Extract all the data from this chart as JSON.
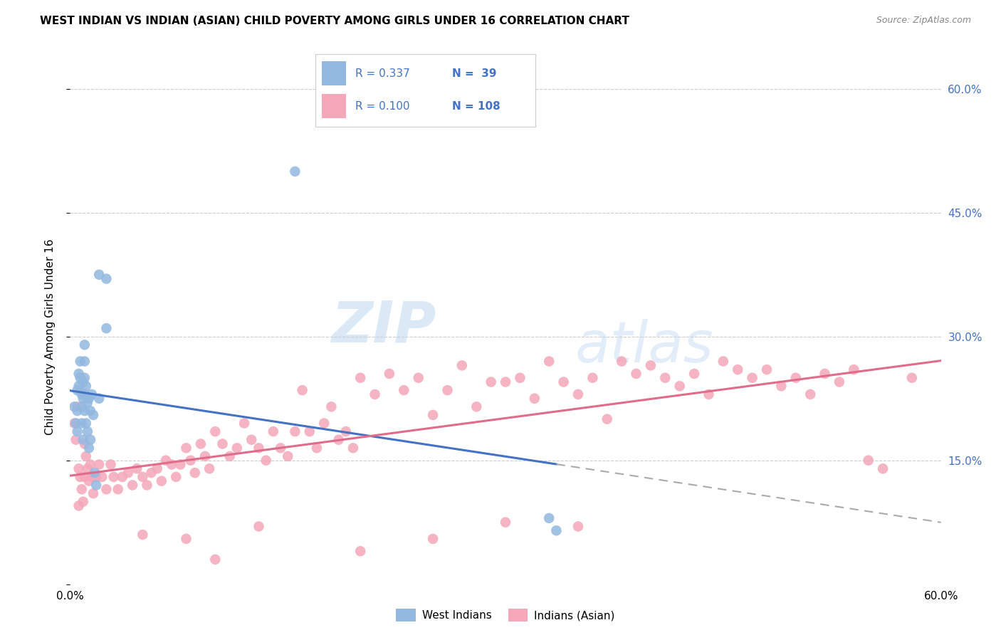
{
  "title": "WEST INDIAN VS INDIAN (ASIAN) CHILD POVERTY AMONG GIRLS UNDER 16 CORRELATION CHART",
  "source": "Source: ZipAtlas.com",
  "ylabel": "Child Poverty Among Girls Under 16",
  "xlim": [
    0,
    0.6
  ],
  "ylim": [
    0,
    0.6
  ],
  "watermark_zip": "ZIP",
  "watermark_atlas": "atlas",
  "blue_color": "#92b8e0",
  "pink_color": "#f4a7b9",
  "trend_blue": "#4472c4",
  "trend_pink": "#e06c8a",
  "wi_x": [
    0.003,
    0.004,
    0.005,
    0.005,
    0.005,
    0.006,
    0.006,
    0.007,
    0.007,
    0.008,
    0.008,
    0.008,
    0.009,
    0.009,
    0.009,
    0.01,
    0.01,
    0.01,
    0.01,
    0.01,
    0.011,
    0.011,
    0.012,
    0.012,
    0.013,
    0.013,
    0.014,
    0.014,
    0.015,
    0.016,
    0.017,
    0.018,
    0.02,
    0.025,
    0.33,
    0.335,
    0.02,
    0.025,
    0.155
  ],
  "wi_y": [
    0.215,
    0.195,
    0.235,
    0.21,
    0.185,
    0.255,
    0.24,
    0.27,
    0.25,
    0.23,
    0.215,
    0.195,
    0.245,
    0.225,
    0.175,
    0.29,
    0.27,
    0.25,
    0.23,
    0.21,
    0.24,
    0.195,
    0.22,
    0.185,
    0.225,
    0.165,
    0.21,
    0.175,
    0.23,
    0.205,
    0.135,
    0.12,
    0.225,
    0.31,
    0.08,
    0.065,
    0.375,
    0.37,
    0.5
  ],
  "ind_x": [
    0.003,
    0.004,
    0.005,
    0.006,
    0.006,
    0.007,
    0.008,
    0.009,
    0.01,
    0.01,
    0.011,
    0.012,
    0.013,
    0.014,
    0.015,
    0.016,
    0.018,
    0.02,
    0.022,
    0.025,
    0.028,
    0.03,
    0.033,
    0.036,
    0.04,
    0.043,
    0.046,
    0.05,
    0.053,
    0.056,
    0.06,
    0.063,
    0.066,
    0.07,
    0.073,
    0.076,
    0.08,
    0.083,
    0.086,
    0.09,
    0.093,
    0.096,
    0.1,
    0.105,
    0.11,
    0.115,
    0.12,
    0.125,
    0.13,
    0.135,
    0.14,
    0.145,
    0.15,
    0.155,
    0.16,
    0.165,
    0.17,
    0.175,
    0.18,
    0.185,
    0.19,
    0.195,
    0.2,
    0.21,
    0.22,
    0.23,
    0.24,
    0.25,
    0.26,
    0.27,
    0.28,
    0.29,
    0.3,
    0.31,
    0.32,
    0.33,
    0.34,
    0.35,
    0.36,
    0.37,
    0.38,
    0.39,
    0.4,
    0.41,
    0.42,
    0.43,
    0.44,
    0.45,
    0.46,
    0.47,
    0.48,
    0.49,
    0.5,
    0.51,
    0.52,
    0.53,
    0.54,
    0.55,
    0.56,
    0.58,
    0.05,
    0.08,
    0.1,
    0.13,
    0.2,
    0.25,
    0.3,
    0.35
  ],
  "ind_y": [
    0.195,
    0.175,
    0.215,
    0.14,
    0.095,
    0.13,
    0.115,
    0.1,
    0.17,
    0.13,
    0.155,
    0.14,
    0.125,
    0.145,
    0.13,
    0.11,
    0.13,
    0.145,
    0.13,
    0.115,
    0.145,
    0.13,
    0.115,
    0.13,
    0.135,
    0.12,
    0.14,
    0.13,
    0.12,
    0.135,
    0.14,
    0.125,
    0.15,
    0.145,
    0.13,
    0.145,
    0.165,
    0.15,
    0.135,
    0.17,
    0.155,
    0.14,
    0.185,
    0.17,
    0.155,
    0.165,
    0.195,
    0.175,
    0.165,
    0.15,
    0.185,
    0.165,
    0.155,
    0.185,
    0.235,
    0.185,
    0.165,
    0.195,
    0.215,
    0.175,
    0.185,
    0.165,
    0.25,
    0.23,
    0.255,
    0.235,
    0.25,
    0.205,
    0.235,
    0.265,
    0.215,
    0.245,
    0.245,
    0.25,
    0.225,
    0.27,
    0.245,
    0.23,
    0.25,
    0.2,
    0.27,
    0.255,
    0.265,
    0.25,
    0.24,
    0.255,
    0.23,
    0.27,
    0.26,
    0.25,
    0.26,
    0.24,
    0.25,
    0.23,
    0.255,
    0.245,
    0.26,
    0.15,
    0.14,
    0.25,
    0.06,
    0.055,
    0.03,
    0.07,
    0.04,
    0.055,
    0.075,
    0.07
  ],
  "trend_blue_x0": 0.0,
  "trend_blue_x1": 0.335,
  "trend_blue_xdash0": 0.335,
  "trend_blue_xdash1": 0.6,
  "trend_pink_x0": 0.0,
  "trend_pink_x1": 0.6
}
